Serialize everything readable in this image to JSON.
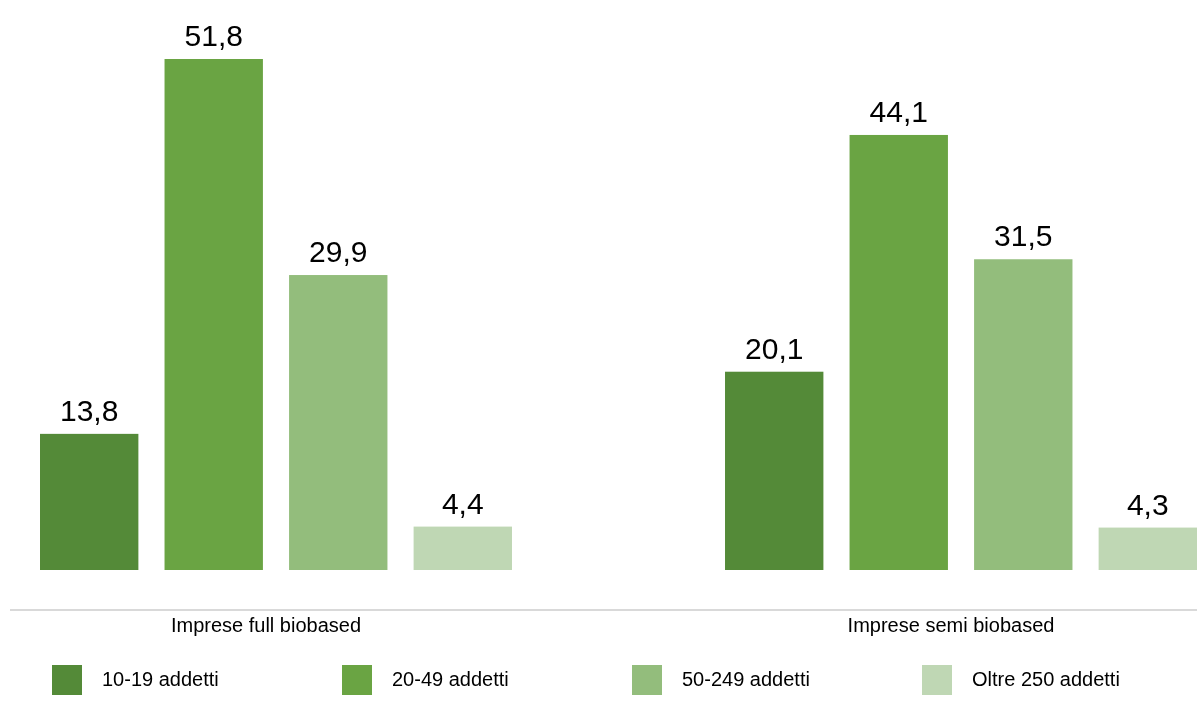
{
  "chart_data": {
    "type": "bar",
    "categories": [
      "Imprese full biobased",
      "Imprese semi biobased"
    ],
    "series": [
      {
        "name": "10-19 addetti",
        "color": "#548a38",
        "values": [
          13.8,
          20.1
        ],
        "value_labels": [
          "13,8",
          "20,1"
        ]
      },
      {
        "name": "20-49 addetti",
        "color": "#6aa443",
        "values": [
          51.8,
          44.1
        ],
        "value_labels": [
          "51,8",
          "44,1"
        ]
      },
      {
        "name": "50-249 addetti",
        "color": "#93bd7c",
        "values": [
          29.9,
          31.5
        ],
        "value_labels": [
          "29,9",
          "31,5"
        ]
      },
      {
        "name": "Oltre 250 addetti",
        "color": "#bfd7b4",
        "values": [
          4.4,
          4.3
        ],
        "value_labels": [
          "4,4",
          "4,3"
        ]
      }
    ],
    "legend": "bottom"
  }
}
